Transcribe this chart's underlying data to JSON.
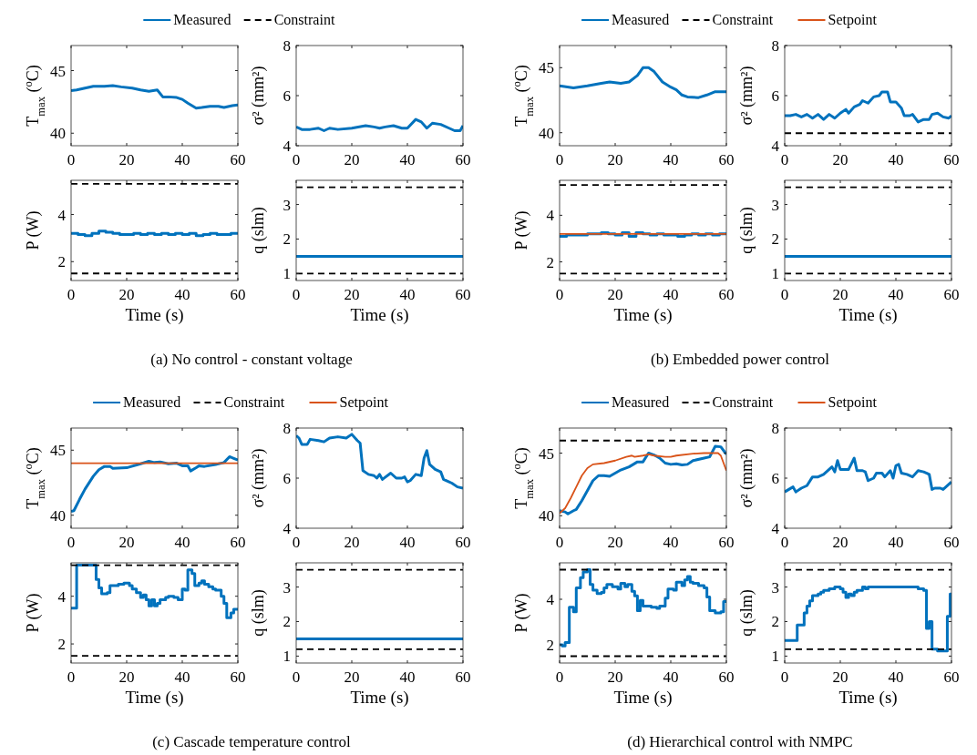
{
  "chart_data": [
    {
      "type": "line",
      "ylabel": "T$_{max}$ ($^{o}$C)",
      "xlim": [
        0,
        60
      ],
      "xticks": [
        0,
        20,
        40,
        60
      ],
      "ylim": [
        39,
        47
      ],
      "yticks": [
        40,
        45
      ],
      "legend": "top",
      "series": [
        {
          "name": "Measured",
          "color": "#0072bd",
          "x": [
            0,
            2,
            5,
            8,
            12,
            15,
            18,
            22,
            25,
            28,
            31,
            33,
            35,
            38,
            40,
            42,
            45,
            47,
            50,
            53,
            55,
            58,
            60
          ],
          "values": [
            43.4,
            43.45,
            43.6,
            43.75,
            43.75,
            43.8,
            43.7,
            43.6,
            43.45,
            43.35,
            43.45,
            42.9,
            42.9,
            42.85,
            42.7,
            42.4,
            42.0,
            42.05,
            42.15,
            42.15,
            42.05,
            42.2,
            42.25
          ]
        }
      ]
    },
    {
      "type": "line",
      "ylabel": "σ² (mm²)",
      "xlim": [
        0,
        60
      ],
      "xticks": [
        0,
        20,
        40,
        60
      ],
      "ylim": [
        4,
        8
      ],
      "yticks": [
        4,
        6,
        8
      ],
      "series": [
        {
          "color": "#0072bd",
          "x": [
            0,
            2,
            5,
            8,
            10,
            12,
            15,
            20,
            25,
            28,
            30,
            32,
            35,
            38,
            40,
            43,
            45,
            47,
            49,
            52,
            55,
            57,
            59,
            60
          ],
          "values": [
            4.75,
            4.65,
            4.65,
            4.7,
            4.6,
            4.7,
            4.65,
            4.7,
            4.8,
            4.75,
            4.7,
            4.75,
            4.8,
            4.7,
            4.7,
            5.05,
            4.95,
            4.7,
            4.9,
            4.85,
            4.7,
            4.6,
            4.6,
            4.8
          ]
        }
      ]
    },
    {
      "type": "line",
      "ylabel": "P (W)",
      "xlabel": "Time (s)",
      "xlim": [
        0,
        60
      ],
      "xticks": [
        0,
        20,
        40,
        60
      ],
      "ylim": [
        1.2,
        5.45
      ],
      "yticks": [
        2,
        4
      ],
      "annotations": [
        "(a) No control - constant voltage"
      ],
      "series": [
        {
          "type": "step",
          "color": "#0072bd",
          "x": [
            0,
            2.5,
            5,
            7.5,
            10,
            12.5,
            15,
            17.5,
            20,
            22.5,
            25,
            27.5,
            30,
            32.5,
            35,
            37.5,
            40,
            42.5,
            45,
            47.5,
            50,
            52.5,
            55,
            57.5,
            60
          ],
          "values": [
            3.2,
            3.15,
            3.1,
            3.2,
            3.3,
            3.25,
            3.2,
            3.15,
            3.15,
            3.2,
            3.15,
            3.2,
            3.15,
            3.2,
            3.15,
            3.2,
            3.15,
            3.2,
            3.1,
            3.15,
            3.2,
            3.15,
            3.15,
            3.2,
            3.2
          ]
        },
        {
          "name": "Constraint",
          "color": "#000000",
          "line_style": "dashed",
          "x": [
            0,
            60
          ],
          "values": [
            5.3,
            5.3
          ]
        },
        {
          "color": "#000000",
          "line_style": "dashed",
          "x": [
            0,
            60
          ],
          "values": [
            1.5,
            1.5
          ]
        }
      ]
    },
    {
      "type": "line",
      "ylabel": "q (slm)",
      "xlabel": "Time (s)",
      "xlim": [
        0,
        60
      ],
      "xticks": [
        0,
        20,
        40,
        60
      ],
      "ylim": [
        0.8,
        3.7
      ],
      "yticks": [
        1,
        2,
        3
      ],
      "series": [
        {
          "color": "#0072bd",
          "x": [
            0,
            60
          ],
          "values": [
            1.5,
            1.5
          ]
        },
        {
          "color": "#000000",
          "line_style": "dashed",
          "x": [
            0,
            60
          ],
          "values": [
            3.5,
            3.5
          ]
        },
        {
          "color": "#000000",
          "line_style": "dashed",
          "x": [
            0,
            60
          ],
          "values": [
            1.0,
            1.0
          ]
        }
      ]
    },
    {
      "type": "line",
      "ylabel": "T$_{max}$ ($^{o}$C)",
      "xlim": [
        0,
        60
      ],
      "xticks": [
        0,
        20,
        40,
        60
      ],
      "ylim": [
        39,
        46.7
      ],
      "yticks": [
        40,
        45
      ],
      "legend": "top",
      "series": [
        {
          "name": "Measured",
          "color": "#0072bd",
          "x": [
            0,
            5,
            10,
            15,
            18,
            22,
            25,
            28,
            30,
            32,
            34,
            37,
            40,
            42,
            44,
            46,
            50,
            53,
            56,
            60
          ],
          "values": [
            43.6,
            43.45,
            43.6,
            43.8,
            43.9,
            43.8,
            43.9,
            44.4,
            45.0,
            45.0,
            44.7,
            43.9,
            43.5,
            43.3,
            42.9,
            42.75,
            42.7,
            42.9,
            43.15,
            43.15
          ]
        }
      ]
    },
    {
      "type": "line",
      "ylabel": "σ² (mm²)",
      "xlim": [
        0,
        60
      ],
      "xticks": [
        0,
        20,
        40,
        60
      ],
      "ylim": [
        4,
        8
      ],
      "yticks": [
        4,
        6,
        8
      ],
      "series": [
        {
          "color": "#0072bd",
          "x": [
            0,
            2,
            4,
            6,
            8,
            10,
            12,
            14,
            16,
            18,
            20,
            22,
            23,
            25,
            27,
            28,
            30,
            32,
            34,
            35,
            37,
            38,
            40,
            42,
            43,
            45,
            46,
            48,
            50,
            52,
            53,
            55,
            57,
            59,
            60
          ],
          "values": [
            5.2,
            5.2,
            5.25,
            5.15,
            5.25,
            5.1,
            5.25,
            5.05,
            5.25,
            5.1,
            5.3,
            5.45,
            5.3,
            5.55,
            5.65,
            5.8,
            5.7,
            5.95,
            6.0,
            6.15,
            6.15,
            5.75,
            5.75,
            5.5,
            5.2,
            5.2,
            5.25,
            4.95,
            5.05,
            5.05,
            5.25,
            5.3,
            5.15,
            5.1,
            5.2
          ]
        },
        {
          "color": "#000000",
          "line_style": "dashed",
          "x": [
            0,
            60
          ],
          "values": [
            4.5,
            4.5
          ]
        }
      ]
    },
    {
      "type": "line",
      "ylabel": "P (W)",
      "xlabel": "Time (s)",
      "xlim": [
        0,
        60
      ],
      "xticks": [
        0,
        20,
        40,
        60
      ],
      "ylim": [
        1.2,
        5.5
      ],
      "yticks": [
        2,
        4
      ],
      "annotations": [
        "(b) Embedded power control"
      ],
      "series": [
        {
          "type": "step",
          "color": "#0072bd",
          "x": [
            0,
            2.5,
            5,
            7.5,
            10,
            12.5,
            15,
            17.5,
            20,
            22.5,
            25,
            27.5,
            30,
            32.5,
            35,
            37.5,
            40,
            42.5,
            45,
            47.5,
            50,
            52.5,
            55,
            57.5,
            60
          ],
          "values": [
            3.1,
            3.15,
            3.15,
            3.15,
            3.2,
            3.2,
            3.25,
            3.2,
            3.15,
            3.25,
            3.1,
            3.25,
            3.2,
            3.15,
            3.2,
            3.15,
            3.15,
            3.1,
            3.15,
            3.2,
            3.15,
            3.2,
            3.15,
            3.2,
            3.2
          ]
        },
        {
          "name": "Constraint",
          "color": "#000000",
          "line_style": "dashed",
          "x": [
            0,
            60
          ],
          "values": [
            5.3,
            5.3
          ]
        },
        {
          "color": "#000000",
          "line_style": "dashed",
          "x": [
            0,
            60
          ],
          "values": [
            1.5,
            1.5
          ]
        },
        {
          "name": "Setpoint",
          "color": "#d95319",
          "x": [
            0,
            60
          ],
          "values": [
            3.2,
            3.2
          ]
        }
      ]
    },
    {
      "type": "line",
      "ylabel": "q (slm)",
      "xlabel": "Time (s)",
      "xlim": [
        0,
        60
      ],
      "xticks": [
        0,
        20,
        40,
        60
      ],
      "ylim": [
        0.8,
        3.7
      ],
      "yticks": [
        1,
        2,
        3
      ],
      "series": [
        {
          "color": "#0072bd",
          "x": [
            0,
            60
          ],
          "values": [
            1.5,
            1.5
          ]
        },
        {
          "color": "#000000",
          "line_style": "dashed",
          "x": [
            0,
            60
          ],
          "values": [
            3.5,
            3.5
          ]
        },
        {
          "color": "#000000",
          "line_style": "dashed",
          "x": [
            0,
            60
          ],
          "values": [
            1.0,
            1.0
          ]
        }
      ]
    },
    {
      "type": "line",
      "ylabel": "T$_{max}$ ($^{o}$C)",
      "xlim": [
        0,
        60
      ],
      "xticks": [
        0,
        20,
        40,
        60
      ],
      "ylim": [
        39,
        46.7
      ],
      "yticks": [
        40,
        45
      ],
      "legend": "top",
      "series": [
        {
          "name": "Measured",
          "color": "#0072bd",
          "x": [
            0,
            1,
            3,
            5,
            8,
            10,
            12,
            14,
            15,
            20,
            25,
            28,
            30,
            32,
            35,
            38,
            40,
            42,
            43,
            45,
            46,
            48,
            52,
            55,
            57,
            60
          ],
          "values": [
            40.3,
            40.35,
            41.2,
            42.0,
            43.0,
            43.5,
            43.75,
            43.75,
            43.6,
            43.65,
            43.95,
            44.15,
            44.05,
            44.1,
            43.95,
            44.0,
            43.8,
            43.8,
            43.4,
            43.65,
            43.8,
            43.75,
            43.9,
            44.05,
            44.5,
            44.25
          ]
        },
        {
          "name": "Setpoint",
          "color": "#d95319",
          "x": [
            0,
            60
          ],
          "values": [
            44,
            44
          ]
        }
      ]
    },
    {
      "type": "line",
      "ylabel": "σ² (mm²)",
      "xlim": [
        0,
        60
      ],
      "xticks": [
        0,
        20,
        40,
        60
      ],
      "ylim": [
        4,
        8
      ],
      "yticks": [
        4,
        6,
        8
      ],
      "series": [
        {
          "color": "#0072bd",
          "x": [
            0,
            1,
            2,
            4,
            5,
            8,
            10,
            12,
            15,
            18,
            20,
            22,
            23,
            24,
            26,
            28,
            29,
            30,
            31,
            34,
            36,
            38,
            39,
            40,
            41,
            43,
            45,
            46,
            47,
            48,
            50,
            52,
            53,
            55,
            56,
            58,
            60
          ],
          "values": [
            7.7,
            7.6,
            7.35,
            7.35,
            7.55,
            7.5,
            7.45,
            7.6,
            7.65,
            7.6,
            7.75,
            7.5,
            7.4,
            6.3,
            6.15,
            6.1,
            6.0,
            6.15,
            5.95,
            6.2,
            6.0,
            6.0,
            6.05,
            5.85,
            5.9,
            6.15,
            6.1,
            6.8,
            7.1,
            6.55,
            6.35,
            6.25,
            5.95,
            5.85,
            5.8,
            5.65,
            5.6
          ]
        }
      ]
    },
    {
      "type": "line",
      "ylabel": "P (W)",
      "xlabel": "Time (s)",
      "xlim": [
        0,
        60
      ],
      "xticks": [
        0,
        20,
        40,
        60
      ],
      "ylim": [
        1.2,
        5.4
      ],
      "yticks": [
        2,
        4
      ],
      "annotations": [
        "(c) Cascade temperature control"
      ],
      "series": [
        {
          "type": "step",
          "color": "#0072bd",
          "x": [
            0,
            2,
            5,
            7.5,
            9,
            10,
            11,
            13,
            14,
            17,
            19,
            21,
            22,
            23.5,
            25,
            26,
            27,
            28,
            29,
            30,
            31,
            32,
            34,
            35,
            37,
            38.5,
            40,
            41,
            42,
            43.5,
            44.5,
            46,
            47,
            48,
            49.5,
            51,
            52,
            54,
            55,
            56,
            57.5,
            58.5,
            60
          ],
          "values": [
            3.5,
            5.3,
            5.3,
            5.3,
            4.7,
            4.35,
            4.1,
            4.15,
            4.45,
            4.5,
            4.55,
            4.45,
            4.3,
            4.15,
            3.95,
            4.05,
            3.85,
            3.6,
            3.85,
            3.6,
            3.7,
            3.85,
            3.95,
            4.0,
            3.95,
            3.85,
            4.3,
            4.25,
            5.1,
            4.95,
            4.45,
            4.55,
            4.65,
            4.5,
            4.4,
            4.3,
            4.25,
            4.0,
            3.7,
            3.1,
            3.3,
            3.45,
            3.45
          ]
        },
        {
          "name": "Constraint",
          "color": "#000000",
          "line_style": "dashed",
          "x": [
            0,
            60
          ],
          "values": [
            5.3,
            5.3
          ]
        },
        {
          "color": "#000000",
          "line_style": "dashed",
          "x": [
            0,
            60
          ],
          "values": [
            1.5,
            1.5
          ]
        }
      ]
    },
    {
      "type": "line",
      "ylabel": "q (slm)",
      "xlabel": "Time (s)",
      "xlim": [
        0,
        60
      ],
      "xticks": [
        0,
        20,
        40,
        60
      ],
      "ylim": [
        0.8,
        3.7
      ],
      "yticks": [
        1,
        2,
        3
      ],
      "series": [
        {
          "color": "#0072bd",
          "x": [
            0,
            60
          ],
          "values": [
            1.5,
            1.5
          ]
        },
        {
          "color": "#000000",
          "line_style": "dashed",
          "x": [
            0,
            60
          ],
          "values": [
            3.5,
            3.5
          ]
        },
        {
          "color": "#000000",
          "line_style": "dashed",
          "x": [
            0,
            60
          ],
          "values": [
            1.2,
            1.2
          ]
        }
      ]
    },
    {
      "type": "line",
      "ylabel": "T$_{max}$ ($^{o}$C)",
      "xlim": [
        0,
        60
      ],
      "xticks": [
        0,
        20,
        40,
        60
      ],
      "ylim": [
        39,
        47
      ],
      "yticks": [
        40,
        45
      ],
      "legend": "top",
      "series": [
        {
          "name": "Measured",
          "color": "#0072bd",
          "x": [
            0,
            2,
            3,
            5,
            6,
            8,
            10,
            12,
            14,
            16,
            18,
            20,
            22,
            25,
            28,
            30,
            32,
            34,
            36,
            38,
            40,
            42,
            44,
            46,
            48,
            52,
            54,
            56,
            58,
            60
          ],
          "values": [
            40.4,
            40.3,
            40.15,
            40.4,
            40.5,
            41.2,
            42.0,
            42.8,
            43.2,
            43.2,
            43.15,
            43.4,
            43.65,
            43.9,
            44.3,
            44.3,
            45.0,
            44.85,
            44.6,
            44.2,
            44.1,
            44.15,
            44.05,
            44.1,
            44.4,
            44.6,
            44.7,
            45.55,
            45.5,
            44.9
          ]
        },
        {
          "name": "Constraint",
          "color": "#000000",
          "line_style": "dashed",
          "x": [
            0,
            60
          ],
          "values": [
            46,
            46
          ]
        },
        {
          "name": "Setpoint",
          "color": "#d95319",
          "x": [
            0,
            2,
            4,
            6,
            8,
            10,
            12,
            16,
            20,
            24,
            26,
            27,
            30,
            32,
            34,
            38,
            40,
            42,
            48,
            52,
            55,
            57,
            58,
            60
          ],
          "values": [
            40.2,
            40.6,
            41.4,
            42.3,
            43.2,
            43.8,
            44.1,
            44.2,
            44.4,
            44.7,
            44.8,
            44.7,
            44.8,
            44.9,
            44.8,
            44.7,
            44.7,
            44.8,
            44.95,
            45.0,
            45.0,
            45.0,
            44.8,
            43.6
          ]
        }
      ]
    },
    {
      "type": "line",
      "ylabel": "σ² (mm²)",
      "xlim": [
        0,
        60
      ],
      "xticks": [
        0,
        20,
        40,
        60
      ],
      "ylim": [
        4,
        8
      ],
      "yticks": [
        4,
        6,
        8
      ],
      "series": [
        {
          "color": "#0072bd",
          "x": [
            0,
            3,
            4,
            6,
            8,
            10,
            12,
            14,
            16,
            17,
            18,
            19,
            20,
            23,
            25,
            26,
            28,
            29,
            30,
            32,
            33,
            35,
            36,
            38,
            39,
            40,
            41,
            42,
            44,
            46,
            48,
            50,
            52,
            53,
            54,
            56,
            57,
            59,
            60
          ],
          "values": [
            5.45,
            5.65,
            5.45,
            5.6,
            5.7,
            6.05,
            6.05,
            6.15,
            6.35,
            6.45,
            6.25,
            6.7,
            6.35,
            6.35,
            6.8,
            6.3,
            6.3,
            6.25,
            5.9,
            6.0,
            6.2,
            6.2,
            6.05,
            6.3,
            6.0,
            6.5,
            6.55,
            6.2,
            6.15,
            6.05,
            6.3,
            6.25,
            6.15,
            5.55,
            5.6,
            5.6,
            5.55,
            5.75,
            5.85
          ]
        }
      ]
    },
    {
      "type": "line",
      "ylabel": "P (W)",
      "xlabel": "Time (s)",
      "xlim": [
        0,
        60
      ],
      "xticks": [
        0,
        20,
        40,
        60
      ],
      "ylim": [
        1.2,
        5.6
      ],
      "yticks": [
        2,
        4
      ],
      "annotations": [
        "(d) Hierarchical control with NMPC"
      ],
      "series": [
        {
          "type": "step",
          "color": "#0072bd",
          "x": [
            0,
            1,
            2,
            3.5,
            5,
            6,
            7.5,
            8.5,
            10,
            11,
            12,
            13.5,
            15,
            16,
            17,
            19,
            20,
            21,
            22,
            23.5,
            24.5,
            26,
            27,
            28,
            29,
            30,
            33,
            35,
            36,
            38,
            39,
            41,
            42,
            44,
            45,
            46,
            47,
            48,
            50,
            52,
            53,
            54,
            56,
            58,
            59,
            60
          ],
          "values": [
            2.0,
            1.95,
            2.1,
            3.65,
            3.45,
            4.5,
            4.95,
            5.2,
            5.3,
            4.65,
            4.4,
            4.25,
            4.3,
            4.5,
            4.65,
            4.55,
            4.55,
            4.45,
            4.7,
            4.55,
            4.65,
            4.35,
            4.15,
            3.5,
            3.95,
            3.7,
            3.65,
            3.6,
            3.7,
            4.05,
            4.45,
            4.4,
            4.75,
            4.6,
            4.85,
            5.0,
            4.75,
            4.7,
            4.6,
            4.5,
            4.1,
            3.5,
            3.4,
            3.45,
            3.9,
            3.9
          ]
        },
        {
          "color": "#000000",
          "line_style": "dashed",
          "x": [
            0,
            60
          ],
          "values": [
            5.3,
            5.3
          ]
        },
        {
          "color": "#000000",
          "line_style": "dashed",
          "x": [
            0,
            60
          ],
          "values": [
            1.5,
            1.5
          ]
        }
      ]
    },
    {
      "type": "line",
      "ylabel": "q (slm)",
      "xlabel": "Time (s)",
      "xlim": [
        0,
        60
      ],
      "xticks": [
        0,
        20,
        40,
        60
      ],
      "ylim": [
        0.8,
        3.7
      ],
      "yticks": [
        1,
        2,
        3
      ],
      "series": [
        {
          "type": "step",
          "color": "#0072bd",
          "x": [
            0,
            2,
            4.5,
            7,
            8,
            9,
            10,
            12,
            13,
            14,
            16,
            18,
            20,
            21,
            22,
            23,
            24,
            25,
            26,
            28,
            29,
            30,
            48,
            50,
            51,
            52,
            53,
            55,
            58.5,
            59.5,
            60
          ],
          "values": [
            1.45,
            1.45,
            1.9,
            2.25,
            2.45,
            2.6,
            2.75,
            2.8,
            2.85,
            2.9,
            2.95,
            3.0,
            2.95,
            2.85,
            2.7,
            2.8,
            2.75,
            2.85,
            2.9,
            3.0,
            2.95,
            3.0,
            2.95,
            2.9,
            1.8,
            2.0,
            1.2,
            1.15,
            2.15,
            2.8,
            2.8
          ]
        },
        {
          "color": "#000000",
          "line_style": "dashed",
          "x": [
            0,
            60
          ],
          "values": [
            3.5,
            3.5
          ]
        },
        {
          "color": "#000000",
          "line_style": "dashed",
          "x": [
            0,
            60
          ],
          "values": [
            1.2,
            1.2
          ]
        }
      ]
    }
  ]
}
